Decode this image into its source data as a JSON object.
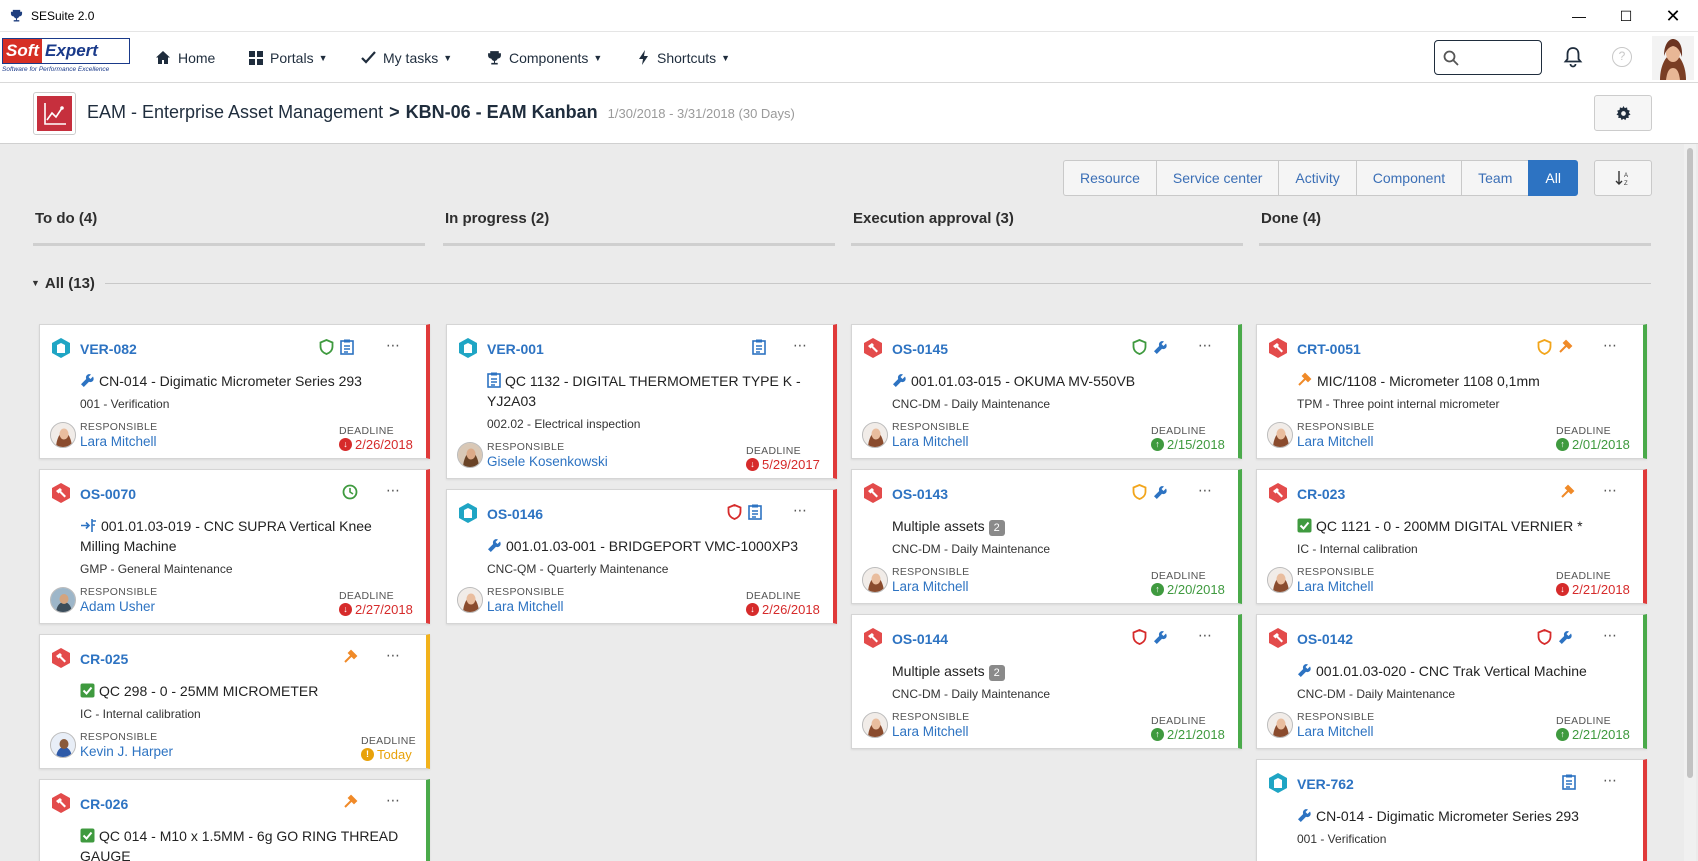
{
  "window": {
    "title": "SESuite 2.0"
  },
  "logo": {
    "soft": "Soft",
    "expert": "Expert",
    "tagline": "Software for Performance Excellence"
  },
  "nav": {
    "home": "Home",
    "portals": "Portals",
    "my_tasks": "My tasks",
    "components": "Components",
    "shortcuts": "Shortcuts",
    "search_placeholder": ""
  },
  "header": {
    "module": "EAM - Enterprise Asset Management",
    "separator": ">",
    "board": "KBN-06 - EAM Kanban",
    "dates": "1/30/2018 - 3/31/2018 (30 Days)"
  },
  "filters": [
    "Resource",
    "Service center",
    "Activity",
    "Component",
    "Team",
    "All"
  ],
  "columns": [
    {
      "title": "To do (4)"
    },
    {
      "title": "In progress (2)"
    },
    {
      "title": "Execution approval (3)"
    },
    {
      "title": "Done (4)"
    }
  ],
  "group": {
    "label": "All (13)"
  },
  "labels": {
    "responsible": "RESPONSIBLE",
    "deadline": "DEADLINE"
  },
  "colors": {
    "accent": "#2d73c2",
    "late": "#e03a3a",
    "ok": "#4aaa4a",
    "today": "#f2b21b"
  },
  "cards": [
    {
      "code": "VER-082",
      "title": "CN-014 - Digimatic Micrometer Series 293",
      "sub": "001 - Verification",
      "responsible": "Lara Mitchell",
      "deadline": "2/26/2018"
    },
    {
      "code": "OS-0070",
      "title_line1": "001.01.03-019 - CNC SUPRA Vertical Knee",
      "title_line2": "Milling Machine",
      "sub": "GMP - General Maintenance",
      "responsible": "Adam Usher",
      "deadline": "2/27/2018"
    },
    {
      "code": "CR-025",
      "title": "QC 298 - 0 - 25MM MICROMETER",
      "sub": "IC - Internal calibration",
      "responsible": "Kevin J. Harper",
      "deadline": "Today"
    },
    {
      "code": "CR-026",
      "title_line1": "QC 014 - M10 x 1.5MM - 6g GO RING THREAD",
      "title_line2": "GAUGE"
    },
    {
      "code": "VER-001",
      "title_line1": "QC 1132 - DIGITAL THERMOMETER TYPE K -",
      "title_line2": "YJ2A03",
      "sub": "002.02 - Electrical inspection",
      "responsible": "Gisele Kosenkowski",
      "deadline": "5/29/2017"
    },
    {
      "code": "OS-0146",
      "title": "001.01.03-001 - BRIDGEPORT VMC-1000XP3",
      "sub": "CNC-QM - Quarterly Maintenance",
      "responsible": "Lara Mitchell",
      "deadline": "2/26/2018"
    },
    {
      "code": "OS-0145",
      "title": "001.01.03-015 - OKUMA MV-550VB",
      "sub": "CNC-DM - Daily Maintenance",
      "responsible": "Lara Mitchell",
      "deadline": "2/15/2018"
    },
    {
      "code": "OS-0143",
      "title": "Multiple assets",
      "badge": "2",
      "sub": "CNC-DM - Daily Maintenance",
      "responsible": "Lara Mitchell",
      "deadline": "2/20/2018"
    },
    {
      "code": "OS-0144",
      "title": "Multiple assets",
      "badge": "2",
      "sub": "CNC-DM - Daily Maintenance",
      "responsible": "Lara Mitchell",
      "deadline": "2/21/2018"
    },
    {
      "code": "CRT-0051",
      "title": "MIC/1108 - Micrometer 1108 0,1mm",
      "sub": "TPM - Three point internal micrometer",
      "responsible": "Lara Mitchell",
      "deadline": "2/01/2018"
    },
    {
      "code": "CR-023",
      "title": "QC 1121 - 0 - 200MM DIGITAL VERNIER *",
      "sub": "IC - Internal calibration",
      "responsible": "Lara Mitchell",
      "deadline": "2/21/2018"
    },
    {
      "code": "OS-0142",
      "title": "001.01.03-020 - CNC Trak Vertical Machine",
      "sub": "CNC-DM - Daily Maintenance",
      "responsible": "Lara Mitchell",
      "deadline": "2/21/2018"
    },
    {
      "code": "VER-762",
      "title": "CN-014 - Digimatic Micrometer Series 293",
      "sub": "001 - Verification"
    }
  ]
}
